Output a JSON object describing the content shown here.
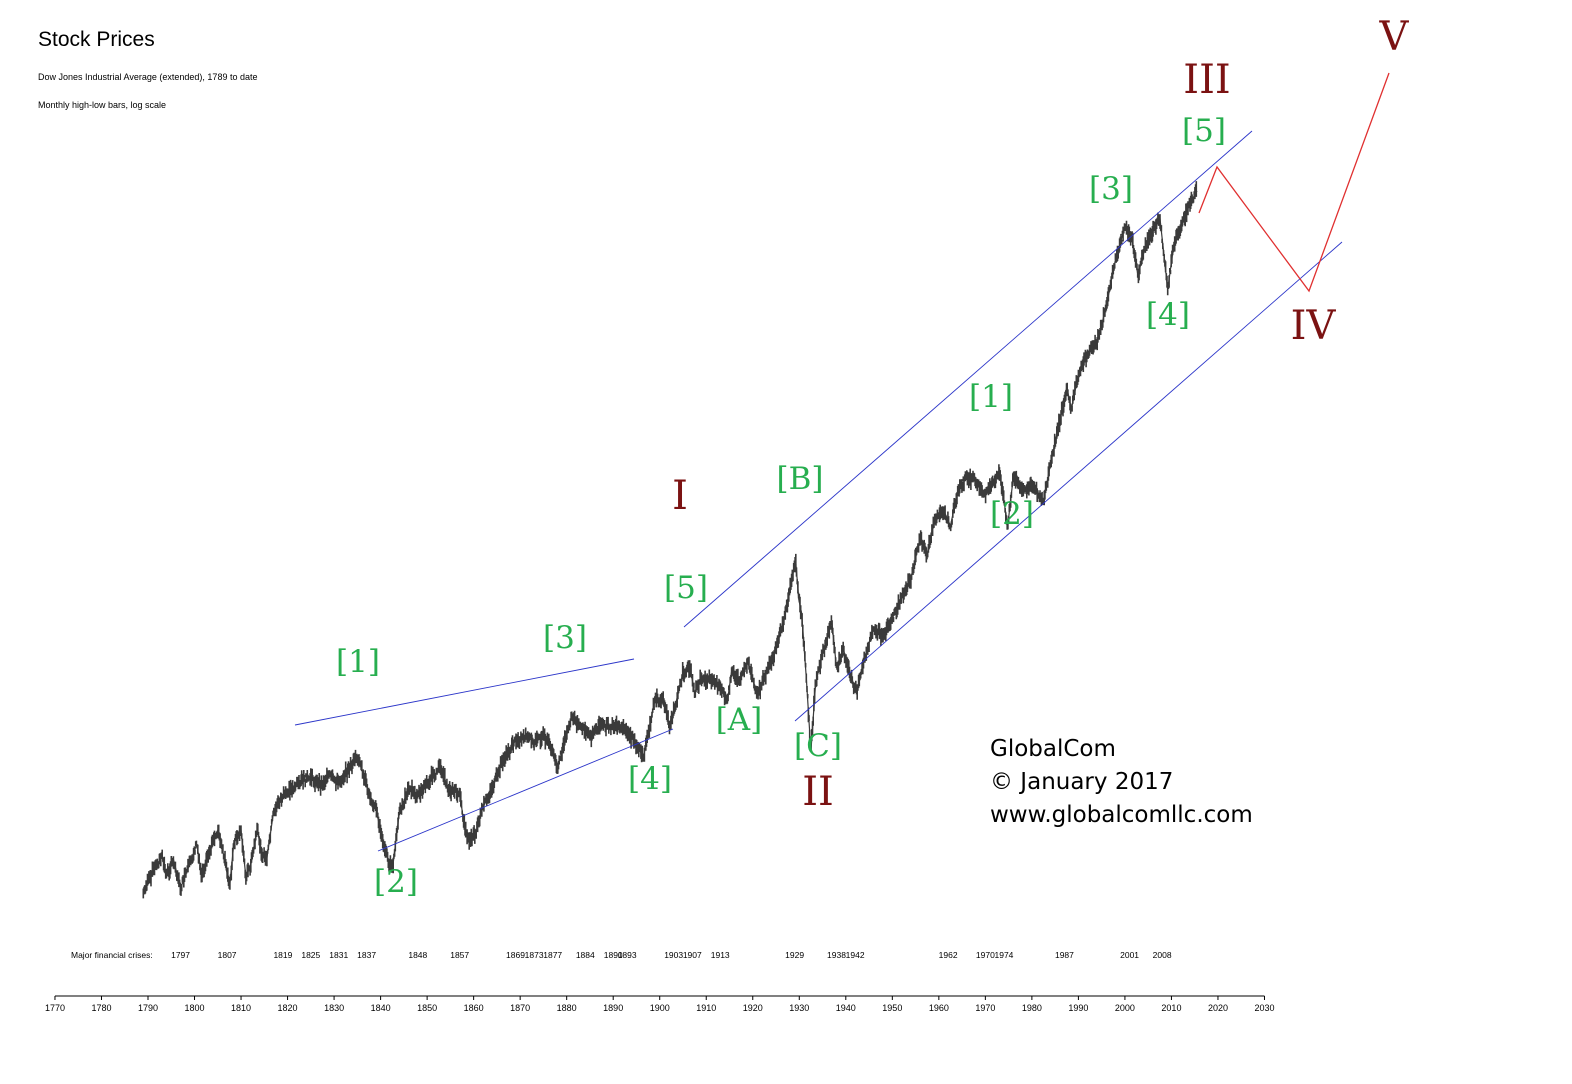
{
  "title": "Stock Prices",
  "subtitle1": "Dow Jones Industrial Average (extended), 1789 to date",
  "subtitle2": "Monthly high-low bars, log scale",
  "credits": [
    "GlobalCom",
    "© January 2017",
    "www.globalcomllc.com"
  ],
  "colors": {
    "price": "#3a3a3a",
    "channel": "#2b35c9",
    "projection": "#e03030",
    "minor_wave": "#27ae4f",
    "major_wave": "#7b1212"
  },
  "chart_data": {
    "type": "line",
    "xlim": [
      1770,
      2030
    ],
    "x_ticks": [
      1770,
      1780,
      1790,
      1800,
      1810,
      1820,
      1830,
      1840,
      1850,
      1860,
      1870,
      1880,
      1890,
      1900,
      1910,
      1920,
      1930,
      1940,
      1950,
      1960,
      1970,
      1980,
      1990,
      2000,
      2010,
      2020,
      2030
    ],
    "y_scale": "log",
    "crises_label": "Major financial crises:",
    "crises": [
      "1797",
      "1807",
      "1819",
      "1825",
      "1831",
      "1837",
      "1848",
      "1857",
      "1869",
      "1873",
      "1877",
      "1884",
      "1890",
      "1893",
      "1903",
      "1907",
      "1913",
      "1929",
      "1938",
      "1942",
      "1962",
      "1970",
      "1974",
      "1987",
      "2001",
      "2008"
    ],
    "series": [
      {
        "values": [
          [
            1789.0,
            0.2
          ],
          [
            1791.0,
            0.25
          ],
          [
            1793.0,
            0.29
          ],
          [
            1794.0,
            0.24
          ],
          [
            1795.5,
            0.28
          ],
          [
            1797.0,
            0.21
          ],
          [
            1799.0,
            0.27
          ],
          [
            1800.5,
            0.33
          ],
          [
            1801.5,
            0.24
          ],
          [
            1803.0,
            0.3
          ],
          [
            1805.0,
            0.38
          ],
          [
            1806.5,
            0.28
          ],
          [
            1807.5,
            0.21
          ],
          [
            1808.5,
            0.34
          ],
          [
            1810.0,
            0.38
          ],
          [
            1811.0,
            0.24
          ],
          [
            1812.0,
            0.26
          ],
          [
            1813.5,
            0.38
          ],
          [
            1814.5,
            0.3
          ],
          [
            1815.5,
            0.28
          ],
          [
            1817.0,
            0.46
          ],
          [
            1818.5,
            0.52
          ],
          [
            1820.0,
            0.56
          ],
          [
            1823.0,
            0.63
          ],
          [
            1825.0,
            0.65
          ],
          [
            1827.0,
            0.6
          ],
          [
            1829.0,
            0.66
          ],
          [
            1831.0,
            0.62
          ],
          [
            1833.0,
            0.7
          ],
          [
            1835.0,
            0.8
          ],
          [
            1836.0,
            0.7
          ],
          [
            1837.5,
            0.55
          ],
          [
            1839.0,
            0.48
          ],
          [
            1840.5,
            0.33
          ],
          [
            1842.5,
            0.25
          ],
          [
            1844.0,
            0.45
          ],
          [
            1846.0,
            0.58
          ],
          [
            1848.0,
            0.54
          ],
          [
            1850.0,
            0.62
          ],
          [
            1853.0,
            0.72
          ],
          [
            1854.5,
            0.58
          ],
          [
            1857.0,
            0.55
          ],
          [
            1858.0,
            0.4
          ],
          [
            1859.0,
            0.34
          ],
          [
            1860.5,
            0.37
          ],
          [
            1862.0,
            0.48
          ],
          [
            1864.0,
            0.58
          ],
          [
            1866.0,
            0.75
          ],
          [
            1869.0,
            0.95
          ],
          [
            1871.5,
            1.0
          ],
          [
            1873.0,
            0.92
          ],
          [
            1875.0,
            1.0
          ],
          [
            1877.0,
            0.84
          ],
          [
            1878.0,
            0.72
          ],
          [
            1879.5,
            0.92
          ],
          [
            1881.0,
            1.2
          ],
          [
            1883.5,
            1.08
          ],
          [
            1885.0,
            0.98
          ],
          [
            1887.0,
            1.1
          ],
          [
            1890.0,
            1.1
          ],
          [
            1892.5,
            1.05
          ],
          [
            1894.5,
            0.95
          ],
          [
            1896.5,
            0.8
          ],
          [
            1898.0,
            1.15
          ],
          [
            1899.0,
            1.45
          ],
          [
            1901.0,
            1.4
          ],
          [
            1902.0,
            1.1
          ],
          [
            1903.5,
            1.4
          ],
          [
            1905.0,
            1.9
          ],
          [
            1906.5,
            2.0
          ],
          [
            1907.5,
            1.55
          ],
          [
            1909.0,
            1.8
          ],
          [
            1911.0,
            1.75
          ],
          [
            1913.0,
            1.65
          ],
          [
            1914.5,
            1.4
          ],
          [
            1915.5,
            1.95
          ],
          [
            1917.0,
            1.75
          ],
          [
            1919.0,
            2.1
          ],
          [
            1921.0,
            1.5
          ],
          [
            1923.0,
            1.9
          ],
          [
            1925.0,
            2.4
          ],
          [
            1927.0,
            3.5
          ],
          [
            1929.2,
            6.0
          ],
          [
            1929.9,
            4.0
          ],
          [
            1930.5,
            3.5
          ],
          [
            1931.5,
            1.8
          ],
          [
            1932.5,
            0.85
          ],
          [
            1933.5,
            1.7
          ],
          [
            1935.0,
            2.3
          ],
          [
            1937.0,
            3.2
          ],
          [
            1938.0,
            2.0
          ],
          [
            1939.5,
            2.4
          ],
          [
            1940.5,
            2.0
          ],
          [
            1942.3,
            1.55
          ],
          [
            1944.0,
            2.2
          ],
          [
            1946.0,
            3.0
          ],
          [
            1948.0,
            2.75
          ],
          [
            1950.0,
            3.3
          ],
          [
            1952.5,
            4.3
          ],
          [
            1954.0,
            5.0
          ],
          [
            1956.0,
            7.5
          ],
          [
            1957.5,
            6.4
          ],
          [
            1959.0,
            9.0
          ],
          [
            1961.0,
            10.0
          ],
          [
            1962.5,
            8.5
          ],
          [
            1964.0,
            12.0
          ],
          [
            1966.0,
            14.0
          ],
          [
            1968.0,
            13.5
          ],
          [
            1970.0,
            11.5
          ],
          [
            1973.0,
            15.0
          ],
          [
            1974.8,
            8.5
          ],
          [
            1976.0,
            14.0
          ],
          [
            1978.0,
            12.0
          ],
          [
            1980.0,
            13.0
          ],
          [
            1982.5,
            11.0
          ],
          [
            1984.0,
            16.0
          ],
          [
            1987.5,
            35.0
          ],
          [
            1988.5,
            28.0
          ],
          [
            1990.0,
            40.0
          ],
          [
            1992.0,
            50.0
          ],
          [
            1994.0,
            55.0
          ],
          [
            1996.0,
            80.0
          ],
          [
            1998.0,
            130.0
          ],
          [
            2000.0,
            180.0
          ],
          [
            2001.5,
            160.0
          ],
          [
            2002.8,
            110.0
          ],
          [
            2004.5,
            150.0
          ],
          [
            2007.5,
            200.0
          ],
          [
            2009.2,
            95.0
          ],
          [
            2010.5,
            150.0
          ],
          [
            2012.0,
            180.0
          ],
          [
            2014.0,
            230.0
          ],
          [
            2015.5,
            260.0
          ]
        ]
      }
    ],
    "annotations": {
      "minor_waves": [
        "[1]",
        "[2]",
        "[3]",
        "[4]",
        "[5]",
        "[A]",
        "[B]",
        "[C]",
        "[1]",
        "[2]",
        "[3]",
        "[4]",
        "[5]"
      ],
      "major_waves": [
        "I",
        "II",
        "III",
        "IV",
        "V"
      ]
    }
  }
}
